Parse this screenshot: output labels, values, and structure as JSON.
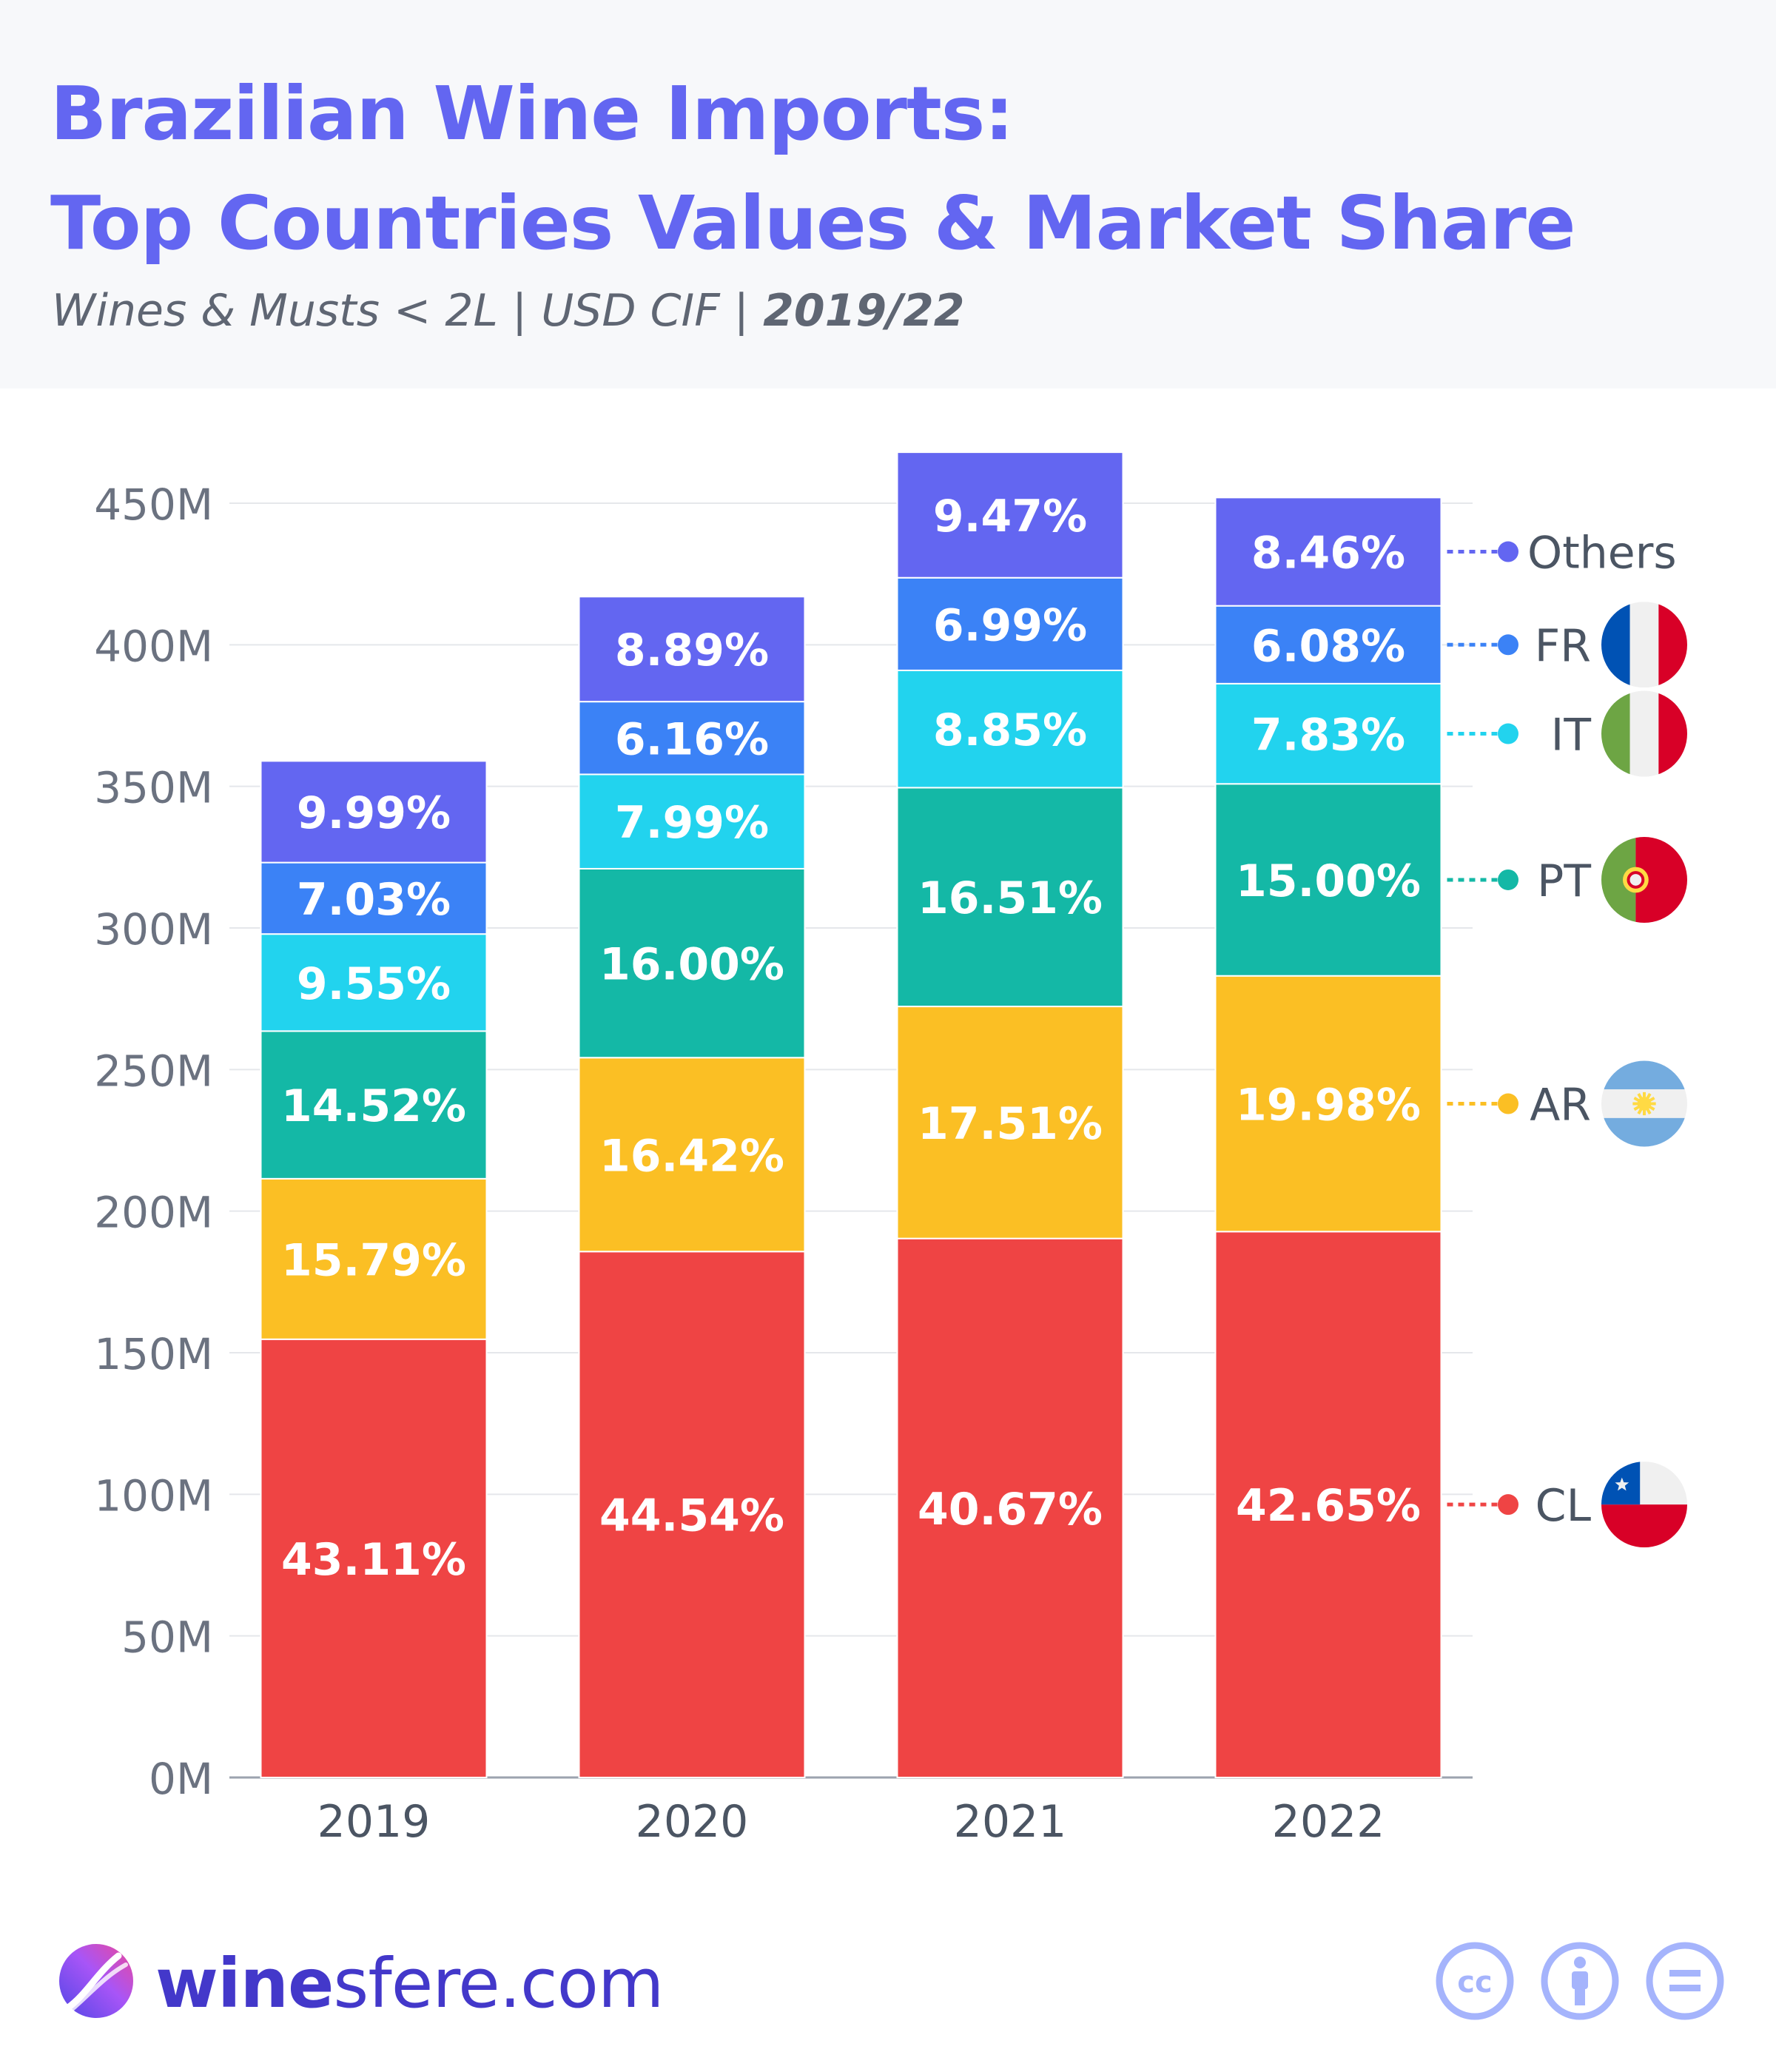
{
  "title_line1": "Brazilian Wine Imports:",
  "title_line2": "Top Countries Values & Market Share",
  "subtitle_main": "Wines & Musts < 2L | USD CIF | ",
  "subtitle_years": "2019/22",
  "brand": {
    "strong": "wine",
    "rest": "sfere.com"
  },
  "license_icons": [
    "cc-icon",
    "attribution-icon",
    "no-derivatives-icon"
  ],
  "chart_data": {
    "type": "bar",
    "stacked": true,
    "title": "Brazilian Wine Imports: Top Countries Values & Market Share",
    "xlabel": "",
    "ylabel": "",
    "ylim": [
      0,
      450000000
    ],
    "yticks": [
      "0M",
      "50M",
      "100M",
      "150M",
      "200M",
      "250M",
      "300M",
      "350M",
      "400M",
      "450M"
    ],
    "categories": [
      "2019",
      "2020",
      "2021",
      "2022"
    ],
    "totals": [
      359000000,
      417000000,
      468000000,
      452000000
    ],
    "series": [
      {
        "name": "CL",
        "color": "#ef4444",
        "flag": "chile-flag-icon",
        "shares": [
          43.11,
          44.54,
          40.67,
          42.65
        ],
        "labels": [
          "43.11%",
          "44.54%",
          "40.67%",
          "42.65%"
        ]
      },
      {
        "name": "AR",
        "color": "#fbbf24",
        "flag": "argentina-flag-icon",
        "shares": [
          15.79,
          16.42,
          17.51,
          19.98
        ],
        "labels": [
          "15.79%",
          "16.42%",
          "17.51%",
          "19.98%"
        ]
      },
      {
        "name": "PT",
        "color": "#14b8a6",
        "flag": "portugal-flag-icon",
        "shares": [
          14.52,
          16.0,
          16.51,
          15.0
        ],
        "labels": [
          "14.52%",
          "16.00%",
          "16.51%",
          "15.00%"
        ]
      },
      {
        "name": "IT",
        "color": "#22d3ee",
        "flag": "italy-flag-icon",
        "shares": [
          9.55,
          7.99,
          8.85,
          7.83
        ],
        "labels": [
          "9.55%",
          "7.99%",
          "8.85%",
          "7.83%"
        ]
      },
      {
        "name": "FR",
        "color": "#3b82f6",
        "flag": "france-flag-icon",
        "shares": [
          7.03,
          6.16,
          6.99,
          6.08
        ],
        "labels": [
          "7.03%",
          "6.16%",
          "6.99%",
          "6.08%"
        ]
      },
      {
        "name": "Others",
        "color": "#6366f1",
        "flag": "",
        "shares": [
          9.99,
          8.89,
          9.47,
          8.46
        ],
        "labels": [
          "9.99%",
          "8.89%",
          "9.47%",
          "8.46%"
        ]
      }
    ],
    "grid": true,
    "legend": "right"
  }
}
